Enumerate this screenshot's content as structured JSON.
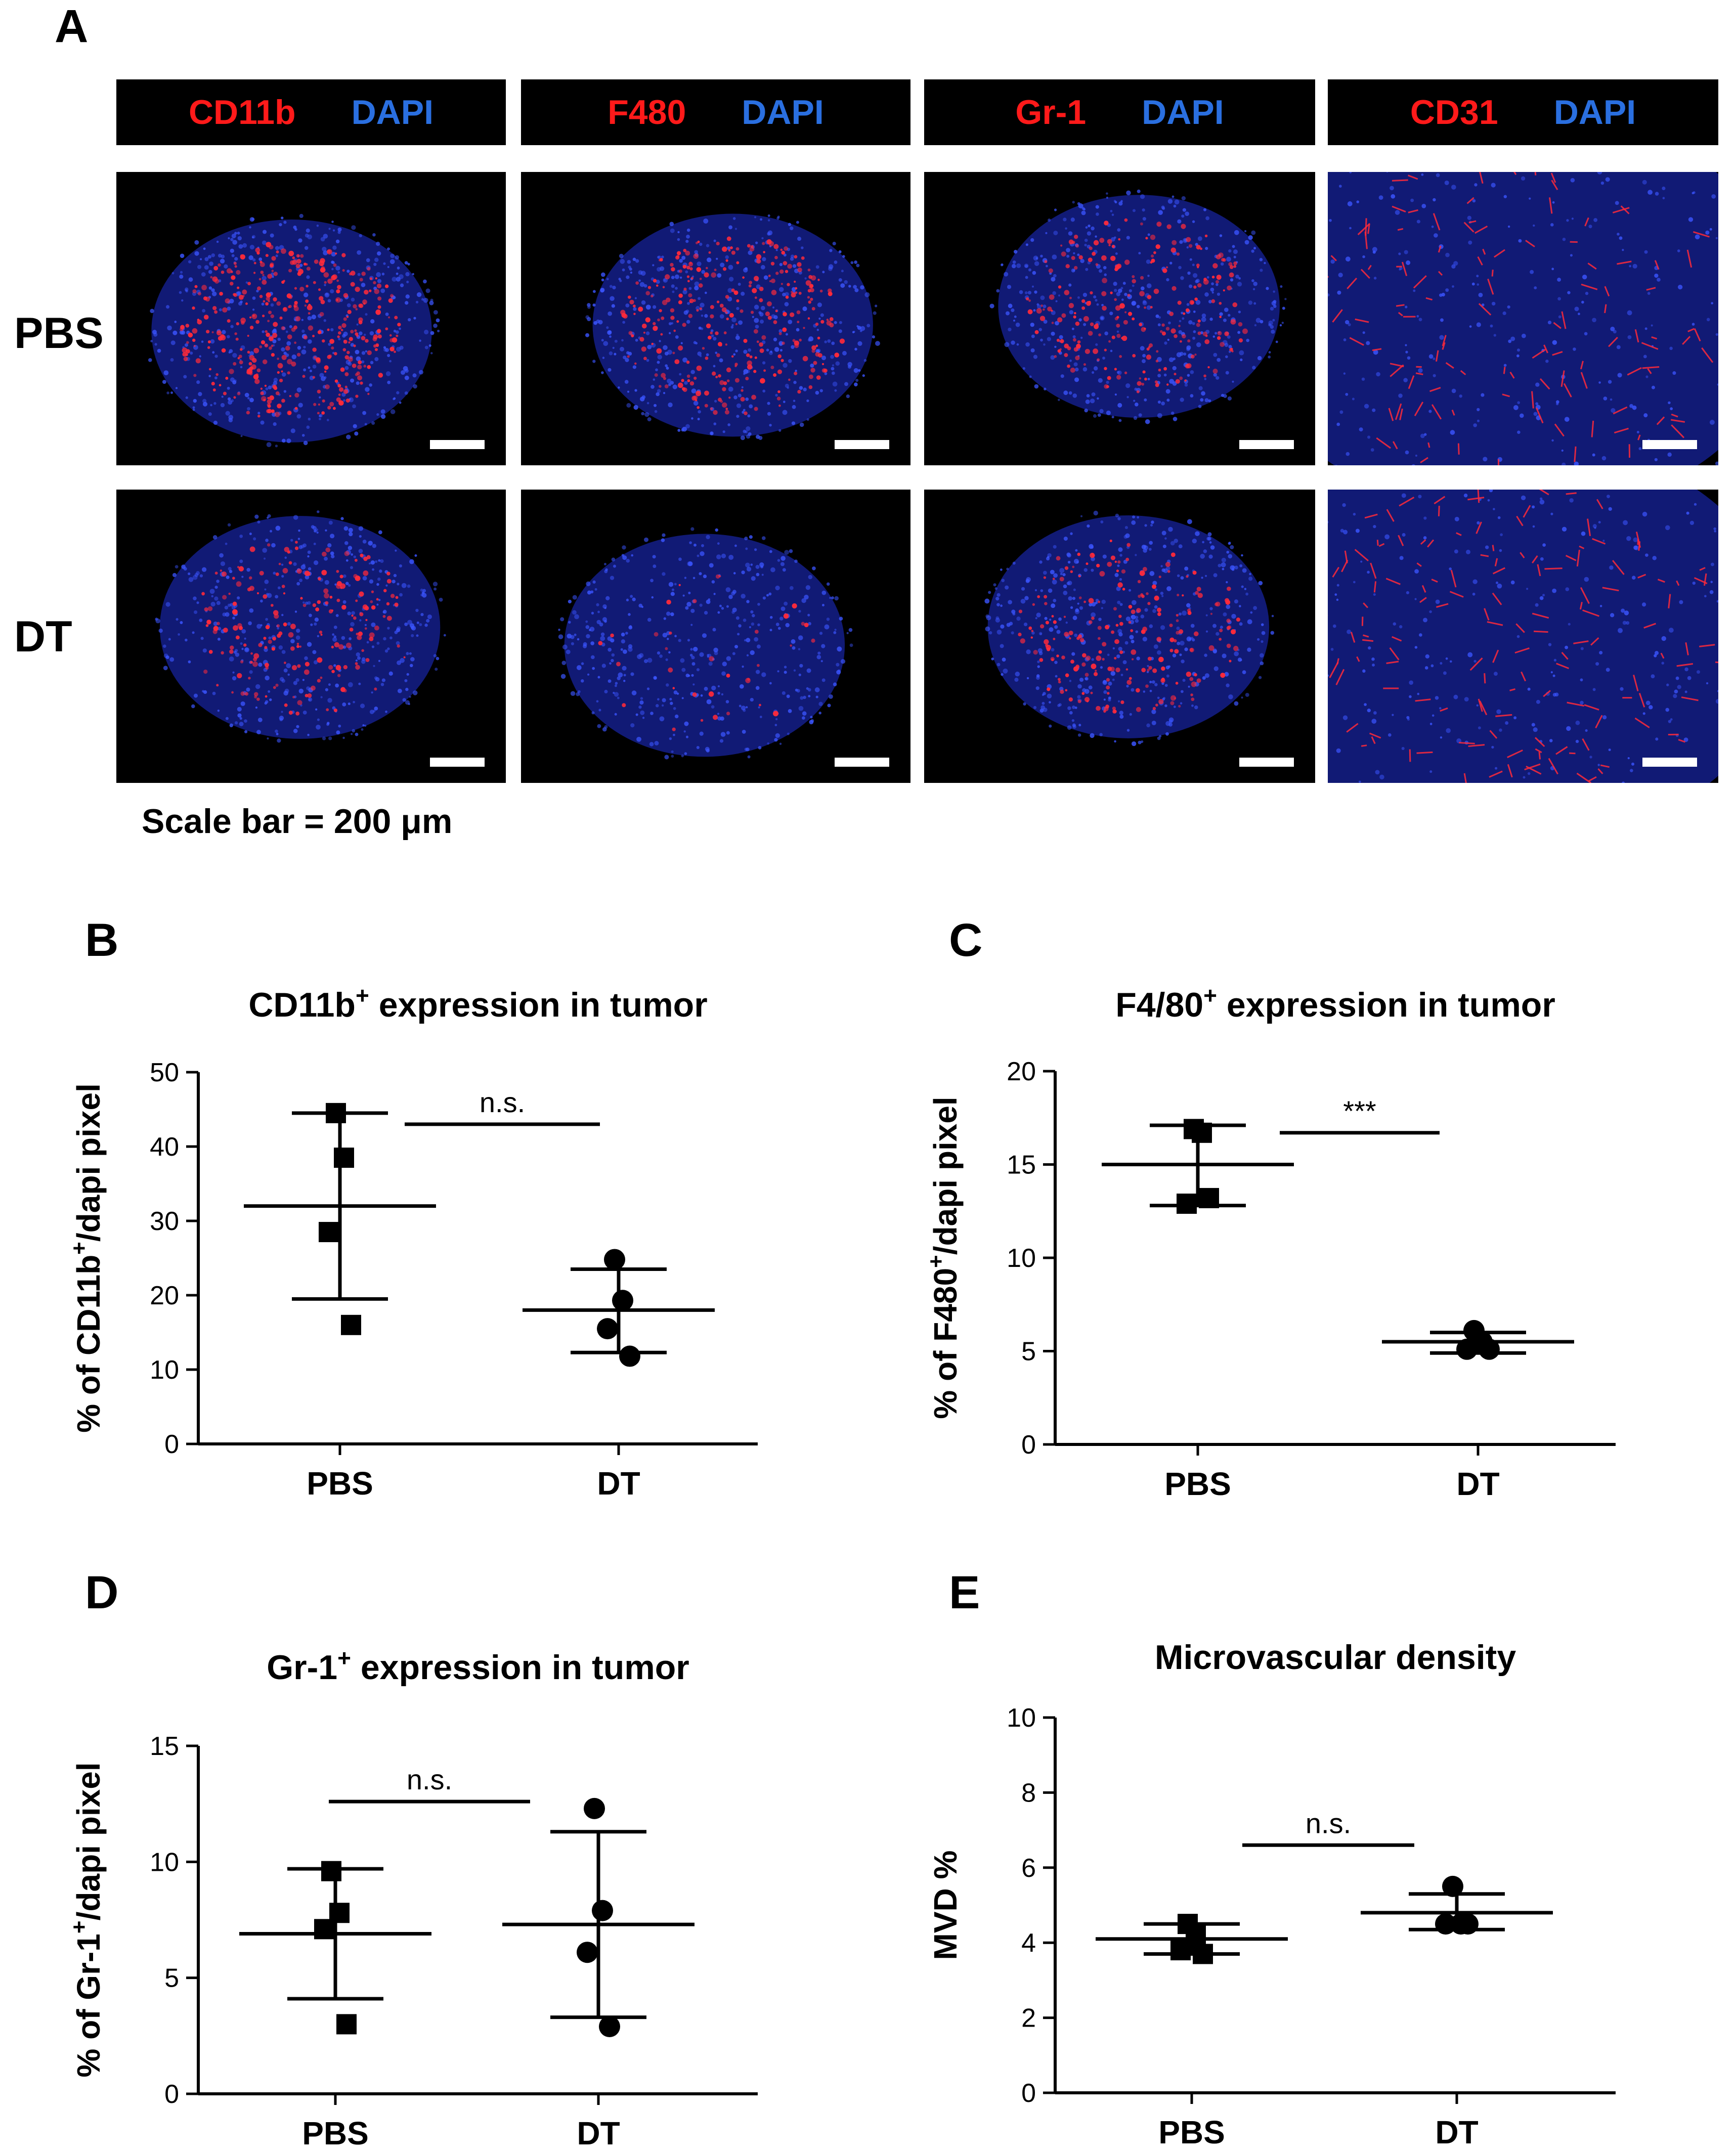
{
  "panelA": {
    "letter": "A",
    "headers": [
      {
        "marker": "CD11b",
        "stain": "DAPI"
      },
      {
        "marker": "F480",
        "stain": "DAPI"
      },
      {
        "marker": "Gr-1",
        "stain": "DAPI"
      },
      {
        "marker": "CD31",
        "stain": "DAPI"
      }
    ],
    "rows": [
      "PBS",
      "DT"
    ],
    "scale_note": "Scale bar = 200 μm",
    "colors": {
      "marker": "#ff1a1a",
      "dapi": "#2a6fe0",
      "signal_red": "#ff2a3a",
      "nuclei_blue": "#1f2fd6"
    }
  },
  "chart_data": [
    {
      "letter": "B",
      "type": "scatter",
      "title": "CD11b",
      "title_sup": "+",
      "title_rest": " expression in tumor",
      "ylabel": "% of CD11b",
      "ylabel_sup": "+",
      "ylabel_rest": "/dapi pixel",
      "categories": [
        "PBS",
        "DT"
      ],
      "ylim": [
        0,
        50
      ],
      "yticks": [
        0,
        10,
        20,
        30,
        40,
        50
      ],
      "series": [
        {
          "category": "PBS",
          "marker": "square",
          "values": [
            44.5,
            38.5,
            28.5,
            16
          ],
          "mean": 32,
          "sd_low": 19.5,
          "sd_high": 44.5
        },
        {
          "category": "DT",
          "marker": "circle",
          "values": [
            24.8,
            19.3,
            15.5,
            11.8
          ],
          "mean": 18,
          "sd_low": 12.3,
          "sd_high": 23.5
        }
      ],
      "significance": "n.s.",
      "sig_y": 43
    },
    {
      "letter": "C",
      "type": "scatter",
      "title": "F4/80",
      "title_sup": "+",
      "title_rest": " expression in tumor",
      "ylabel": "% of F480",
      "ylabel_sup": "+",
      "ylabel_rest": "/dapi pixel",
      "categories": [
        "PBS",
        "DT"
      ],
      "ylim": [
        0,
        20
      ],
      "yticks": [
        0,
        5,
        10,
        15,
        20
      ],
      "series": [
        {
          "category": "PBS",
          "marker": "square",
          "values": [
            16.9,
            16.7,
            12.9,
            13.2
          ],
          "mean": 15,
          "sd_low": 12.8,
          "sd_high": 17.1
        },
        {
          "category": "DT",
          "marker": "circle",
          "values": [
            6.1,
            5.5,
            5.1,
            5.1
          ],
          "mean": 5.5,
          "sd_low": 4.9,
          "sd_high": 6.0
        }
      ],
      "significance": "***",
      "sig_y": 16.7
    },
    {
      "letter": "D",
      "type": "scatter",
      "title": "Gr-1",
      "title_sup": "+",
      "title_rest": " expression in tumor",
      "ylabel": "% of Gr-1",
      "ylabel_sup": "+",
      "ylabel_rest": "/dapi pixel",
      "categories": [
        "PBS",
        "DT"
      ],
      "ylim": [
        0,
        15
      ],
      "yticks": [
        0,
        5,
        10,
        15
      ],
      "series": [
        {
          "category": "PBS",
          "marker": "square",
          "values": [
            9.6,
            7.8,
            7.1,
            3.0
          ],
          "mean": 6.9,
          "sd_low": 4.1,
          "sd_high": 9.7
        },
        {
          "category": "DT",
          "marker": "circle",
          "values": [
            12.3,
            7.9,
            6.1,
            2.9
          ],
          "mean": 7.3,
          "sd_low": 3.3,
          "sd_high": 11.3
        }
      ],
      "significance": "n.s.",
      "sig_y": 12.6
    },
    {
      "letter": "E",
      "type": "scatter",
      "title": "Microvascular density",
      "title_sup": "",
      "title_rest": "",
      "ylabel": "MVD %",
      "ylabel_sup": "",
      "ylabel_rest": "",
      "categories": [
        "PBS",
        "DT"
      ],
      "ylim": [
        0,
        10
      ],
      "yticks": [
        0,
        2,
        4,
        6,
        8,
        10
      ],
      "series": [
        {
          "category": "PBS",
          "marker": "square",
          "values": [
            4.5,
            4.2,
            3.8,
            3.7
          ],
          "mean": 4.1,
          "sd_low": 3.7,
          "sd_high": 4.5
        },
        {
          "category": "DT",
          "marker": "circle",
          "values": [
            5.5,
            4.5,
            4.5,
            4.5
          ],
          "mean": 4.8,
          "sd_low": 4.35,
          "sd_high": 5.3
        }
      ],
      "significance": "n.s.",
      "sig_y": 6.6
    }
  ]
}
